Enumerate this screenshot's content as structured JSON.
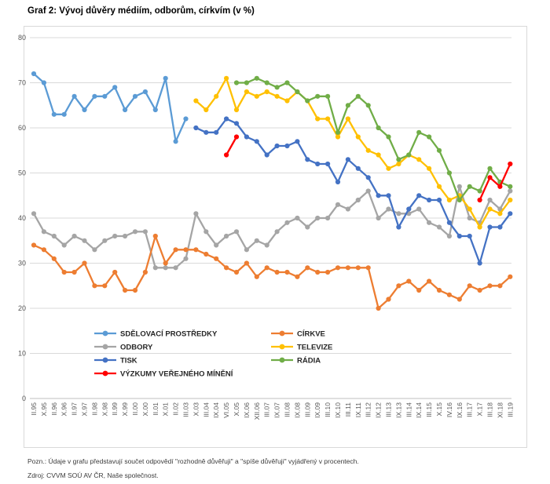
{
  "title": "Graf 2: Vývoj důvěry médiím, odborům, církvím (v %)",
  "note": "Pozn.: Údaje v grafu představují součet odpovědí \"rozhodně důvěřuji\" a \"spíše důvěřuji\" vyjádřený v procentech.",
  "source": "Zdroj: CVVM SOÚ AV ČR, Naše společnost.",
  "colors": {
    "grid": "#d9d9d9",
    "axis": "#bfbfbf",
    "tick_text": "#595959",
    "legend_text": "#262626",
    "frame": "#d9d9d9"
  },
  "chart_data": {
    "type": "line",
    "title": "Graf 2: Vývoj důvěry médiím, odborům, církvím (v %)",
    "xlabel": "",
    "ylabel": "",
    "ylim": [
      0,
      80
    ],
    "ytick_step": 10,
    "grid": true,
    "legend_position": "inside-bottom",
    "categories": [
      "II.95",
      "X.95",
      "II.96",
      "X.96",
      "II.97",
      "X.97",
      "II.98",
      "X.98",
      "II.99",
      "X.99",
      "II.00",
      "X.00",
      "II.01",
      "X.01",
      "II.02",
      "III.03",
      "X.03",
      "III.04",
      "IX.04",
      "VI.05",
      "X.05",
      "IX.06",
      "XII.06",
      "III.07",
      "IX.07",
      "III.08",
      "IX.08",
      "III.09",
      "IX.09",
      "III.10",
      "IX.10",
      "III.11",
      "IX.11",
      "III.12",
      "IX.12",
      "III.13",
      "IX.13",
      "III.14",
      "IX.14",
      "III.15",
      "X.15",
      "IV.16",
      "IX.16",
      "III.17",
      "X.17",
      "III.18",
      "XI.18",
      "III.19"
    ],
    "series": [
      {
        "name": "SDĚLOVACÍ PROSTŘEDKY",
        "color": "#5B9BD5",
        "values": [
          72,
          70,
          63,
          63,
          67,
          64,
          67,
          67,
          69,
          64,
          67,
          68,
          64,
          71,
          57,
          62,
          null,
          null,
          null,
          null,
          null,
          null,
          null,
          null,
          null,
          null,
          null,
          null,
          null,
          null,
          null,
          null,
          null,
          null,
          null,
          null,
          null,
          null,
          null,
          null,
          null,
          null,
          null,
          null,
          null,
          null,
          null,
          null
        ]
      },
      {
        "name": "ODBORY",
        "color": "#A5A5A5",
        "values": [
          41,
          37,
          36,
          34,
          36,
          35,
          33,
          35,
          36,
          36,
          37,
          37,
          29,
          29,
          29,
          31,
          41,
          37,
          34,
          36,
          37,
          33,
          35,
          34,
          37,
          39,
          40,
          38,
          40,
          40,
          43,
          42,
          44,
          46,
          40,
          42,
          41,
          41,
          42,
          39,
          38,
          36,
          47,
          40,
          39,
          44,
          42,
          46
        ]
      },
      {
        "name": "CÍRKVE",
        "color": "#ED7D31",
        "values": [
          34,
          33,
          31,
          28,
          28,
          30,
          25,
          25,
          28,
          24,
          24,
          28,
          36,
          30,
          33,
          33,
          33,
          32,
          31,
          29,
          28,
          30,
          27,
          29,
          28,
          28,
          27,
          29,
          28,
          28,
          29,
          29,
          29,
          29,
          20,
          22,
          25,
          26,
          24,
          26,
          24,
          23,
          22,
          25,
          24,
          25,
          25,
          27
        ]
      },
      {
        "name": "TISK",
        "color": "#4472C4",
        "values": [
          null,
          null,
          null,
          null,
          null,
          null,
          null,
          null,
          null,
          null,
          null,
          null,
          null,
          null,
          null,
          null,
          60,
          59,
          59,
          62,
          61,
          58,
          57,
          54,
          56,
          56,
          57,
          53,
          52,
          52,
          48,
          53,
          51,
          49,
          45,
          45,
          38,
          42,
          45,
          44,
          44,
          39,
          36,
          36,
          30,
          38,
          38,
          41
        ]
      },
      {
        "name": "TELEVIZE",
        "color": "#FFC000",
        "values": [
          null,
          null,
          null,
          null,
          null,
          null,
          null,
          null,
          null,
          null,
          null,
          null,
          null,
          null,
          null,
          null,
          66,
          64,
          67,
          71,
          64,
          68,
          67,
          68,
          67,
          66,
          68,
          66,
          62,
          62,
          58,
          62,
          58,
          55,
          54,
          51,
          52,
          54,
          53,
          51,
          47,
          44,
          45,
          42,
          38,
          42,
          41,
          44
        ]
      },
      {
        "name": "RÁDIA",
        "color": "#70AD47",
        "values": [
          null,
          null,
          null,
          null,
          null,
          null,
          null,
          null,
          null,
          null,
          null,
          null,
          null,
          null,
          null,
          null,
          null,
          null,
          null,
          null,
          70,
          70,
          71,
          70,
          69,
          70,
          68,
          66,
          67,
          67,
          59,
          65,
          67,
          65,
          60,
          58,
          53,
          54,
          59,
          58,
          55,
          50,
          44,
          47,
          46,
          51,
          48,
          47
        ]
      },
      {
        "name": "VÝZKUMY VEŘEJNÉHO MÍNĚNÍ",
        "color": "#FF0000",
        "values": [
          null,
          null,
          null,
          null,
          null,
          null,
          null,
          null,
          null,
          null,
          null,
          null,
          null,
          null,
          null,
          null,
          null,
          null,
          null,
          54,
          58,
          null,
          null,
          null,
          null,
          null,
          null,
          null,
          null,
          null,
          null,
          null,
          null,
          null,
          null,
          null,
          null,
          null,
          null,
          null,
          null,
          null,
          null,
          null,
          44,
          49,
          47,
          52
        ]
      }
    ],
    "legend_columns": [
      [
        "SDĚLOVACÍ PROSTŘEDKY",
        "ODBORY",
        "TISK",
        "VÝZKUMY VEŘEJNÉHO MÍNĚNÍ"
      ],
      [
        "CÍRKVE",
        "TELEVIZE",
        "RÁDIA"
      ]
    ]
  }
}
